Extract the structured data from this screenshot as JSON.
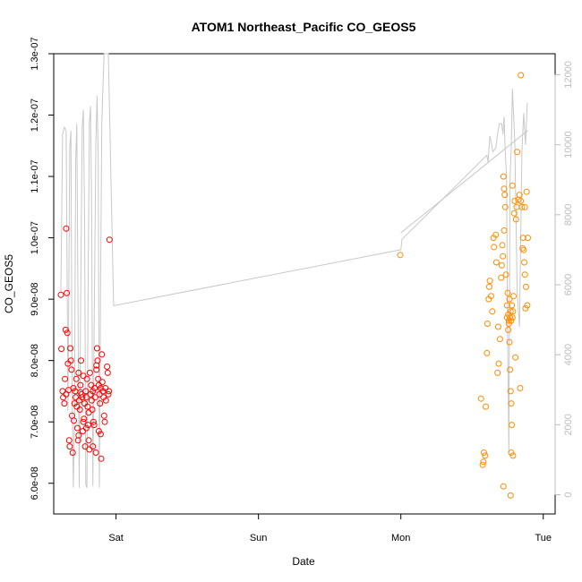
{
  "chart_data": {
    "type": "scatter",
    "title": "ATOM1 Northeast_Pacific CO_GEOS5",
    "xlabel": "Date",
    "ylabel": "CO_GEOS5",
    "x_ticks": [
      "Sat",
      "Sun",
      "Mon",
      "Tue"
    ],
    "x_tick_positions_hours": [
      0,
      24,
      48,
      72
    ],
    "xlim_hours": [
      -10.5,
      74
    ],
    "ylim": [
      5.5e-08,
      1.3e-07
    ],
    "y_ticks": [
      "6.0e-08",
      "7.0e-08",
      "8.0e-08",
      "9.0e-08",
      "1.0e-07",
      "1.1e-07",
      "1.2e-07",
      "1.3e-07"
    ],
    "y_tick_values": [
      6e-08,
      7e-08,
      8e-08,
      9e-08,
      1e-07,
      1.1e-07,
      1.2e-07,
      1.3e-07
    ],
    "y2_ticks": [
      "0",
      "2000",
      "4000",
      "6000",
      "8000",
      "10000",
      "12000"
    ],
    "y2_tick_values": [
      0,
      2000,
      4000,
      6000,
      8000,
      10000,
      12000
    ],
    "y2lim": [
      -550,
      12600
    ],
    "series": [
      {
        "color": "#ff0000",
        "points": [
          [
            -9.3,
            9.07e-08
          ],
          [
            -9.2,
            8.19e-08
          ],
          [
            -9.0,
            7.5e-08
          ],
          [
            -8.9,
            7.4e-08
          ],
          [
            -8.7,
            7.3e-08
          ],
          [
            -8.6,
            7.7e-08
          ],
          [
            -8.4,
            7.45e-08
          ],
          [
            -8.3,
            9.1e-08
          ],
          [
            -8.5,
            8.5e-08
          ],
          [
            -8.4,
            1.015e-07
          ],
          [
            -8.2,
            8.45e-08
          ],
          [
            -8.1,
            7.95e-08
          ],
          [
            -8.0,
            7.52e-08
          ],
          [
            -7.9,
            6.7e-08
          ],
          [
            -7.8,
            6.6e-08
          ],
          [
            -7.7,
            8.2e-08
          ],
          [
            -7.6,
            8e-08
          ],
          [
            -7.5,
            7.85e-08
          ],
          [
            -7.4,
            7.1e-08
          ],
          [
            -7.3,
            6.5e-08
          ],
          [
            -7.2,
            7.55e-08
          ],
          [
            -7.0,
            7.3e-08
          ],
          [
            -6.9,
            7.5e-08
          ],
          [
            -6.8,
            7.4e-08
          ],
          [
            -6.7,
            7.7e-08
          ],
          [
            -6.6,
            7.25e-08
          ],
          [
            -6.5,
            6.9e-08
          ],
          [
            -6.4,
            6.7e-08
          ],
          [
            -6.3,
            7.8e-08
          ],
          [
            -6.2,
            7.35e-08
          ],
          [
            -6.1,
            7.2e-08
          ],
          [
            -6.0,
            7.6e-08
          ],
          [
            -5.9,
            8e-08
          ],
          [
            -5.8,
            7.45e-08
          ],
          [
            -5.7,
            7.4e-08
          ],
          [
            -5.6,
            6.85e-08
          ],
          [
            -5.5,
            7e-08
          ],
          [
            -5.4,
            7.05e-08
          ],
          [
            -5.3,
            7.3e-08
          ],
          [
            -5.2,
            6.6e-08
          ],
          [
            -5.1,
            7.5e-08
          ],
          [
            -5.0,
            7.4e-08
          ],
          [
            -4.9,
            7.7e-08
          ],
          [
            -4.8,
            7.25e-08
          ],
          [
            -4.7,
            6.95e-08
          ],
          [
            -4.6,
            6.7e-08
          ],
          [
            -4.5,
            6.55e-08
          ],
          [
            -4.4,
            7.8e-08
          ],
          [
            -4.3,
            7.45e-08
          ],
          [
            -4.2,
            7.6e-08
          ],
          [
            -4.1,
            7.35e-08
          ],
          [
            -4.0,
            7.2e-08
          ],
          [
            -3.9,
            7.5e-08
          ],
          [
            -3.8,
            7e-08
          ],
          [
            -3.7,
            6.95e-08
          ],
          [
            -3.6,
            7.55e-08
          ],
          [
            -3.5,
            7.4e-08
          ],
          [
            -3.4,
            6.5e-08
          ],
          [
            -3.3,
            7.85e-08
          ],
          [
            -3.2,
            8.2e-08
          ],
          [
            -3.1,
            8e-08
          ],
          [
            -3.0,
            7.7e-08
          ],
          [
            -2.9,
            7.6e-08
          ],
          [
            -2.8,
            7.45e-08
          ],
          [
            -2.7,
            7.3e-08
          ],
          [
            -2.6,
            6.8e-08
          ],
          [
            -2.5,
            6.4e-08
          ],
          [
            -2.4,
            8.1e-08
          ],
          [
            -2.3,
            7.65e-08
          ],
          [
            -2.2,
            7.5e-08
          ],
          [
            -2.1,
            7.4e-08
          ],
          [
            -2.0,
            7.1e-08
          ],
          [
            -1.9,
            7e-08
          ],
          [
            -1.8,
            7.55e-08
          ],
          [
            -1.7,
            7.35e-08
          ],
          [
            -1.5,
            7.9e-08
          ],
          [
            -1.4,
            7.8e-08
          ],
          [
            -1.3,
            7.45e-08
          ],
          [
            -1.2,
            7.5e-08
          ],
          [
            -1.1,
            9.97e-08
          ],
          [
            -6.3,
            6.78e-08
          ],
          [
            -5.0,
            6.9e-08
          ],
          [
            -3.9,
            6.6e-08
          ],
          [
            -2.9,
            6.85e-08
          ],
          [
            -4.6,
            7.15e-08
          ],
          [
            -7.1,
            7.02e-08
          ],
          [
            -6.0,
            7.48e-08
          ],
          [
            -5.5,
            7.75e-08
          ],
          [
            -3.3,
            7.92e-08
          ],
          [
            -2.6,
            7.55e-08
          ]
        ]
      },
      {
        "color": "#ff8c00",
        "points": [
          [
            47.9,
            9.72e-08
          ],
          [
            61.5,
            7.38e-08
          ],
          [
            61.8,
            6.3e-08
          ],
          [
            61.9,
            6.35e-08
          ],
          [
            62.0,
            6.5e-08
          ],
          [
            62.2,
            6.45e-08
          ],
          [
            62.3,
            7.25e-08
          ],
          [
            62.5,
            8.12e-08
          ],
          [
            62.6,
            8.6e-08
          ],
          [
            62.8,
            9e-08
          ],
          [
            62.9,
            9.2e-08
          ],
          [
            63.0,
            9.3e-08
          ],
          [
            63.2,
            9.05e-08
          ],
          [
            63.4,
            8.8e-08
          ],
          [
            63.6,
            1e-07
          ],
          [
            63.7,
            9.85e-08
          ],
          [
            64.0,
            1.005e-07
          ],
          [
            64.1,
            9.6e-08
          ],
          [
            64.3,
            7.8e-08
          ],
          [
            64.4,
            8.55e-08
          ],
          [
            64.5,
            7.95e-08
          ],
          [
            64.7,
            8.35e-08
          ],
          [
            64.9,
            9.35e-08
          ],
          [
            65.0,
            9.55e-08
          ],
          [
            65.2,
            9.7e-08
          ],
          [
            65.4,
            1.012e-07
          ],
          [
            65.1,
            9.88e-08
          ],
          [
            65.3,
            1.1e-07
          ],
          [
            65.4,
            1.08e-07
          ],
          [
            65.5,
            1.07e-07
          ],
          [
            65.6,
            1.05e-07
          ],
          [
            65.7,
            9.4e-08
          ],
          [
            65.9,
            8.9e-08
          ],
          [
            66.0,
            9.1e-08
          ],
          [
            66.1,
            8.75e-08
          ],
          [
            66.2,
            8.6e-08
          ],
          [
            66.3,
            9e-08
          ],
          [
            66.4,
            8.7e-08
          ],
          [
            66.5,
            8.8e-08
          ],
          [
            66.6,
            8.65e-08
          ],
          [
            66.7,
            8.9e-08
          ],
          [
            66.8,
            8.7e-08
          ],
          [
            66.9,
            8.8e-08
          ],
          [
            67.0,
            9.05e-08
          ],
          [
            67.1,
            1.04e-07
          ],
          [
            67.2,
            1.06e-07
          ],
          [
            67.4,
            1.03e-07
          ],
          [
            67.5,
            1.05e-07
          ],
          [
            67.6,
            1.14e-07
          ],
          [
            67.8,
            1.062e-07
          ],
          [
            68.0,
            1.07e-07
          ],
          [
            68.2,
            1.06e-07
          ],
          [
            68.4,
            1.05e-07
          ],
          [
            68.6,
            1e-07
          ],
          [
            68.7,
            9.8e-08
          ],
          [
            68.8,
            9.6e-08
          ],
          [
            68.9,
            9.4e-08
          ],
          [
            69.1,
            9.2e-08
          ],
          [
            69.3,
            8.9e-08
          ],
          [
            69.4,
            1e-07
          ],
          [
            65.9,
            8.7e-08
          ],
          [
            66.1,
            8.5e-08
          ],
          [
            66.2,
            8.65e-08
          ],
          [
            66.3,
            8.3e-08
          ],
          [
            66.4,
            7.85e-08
          ],
          [
            66.5,
            7.5e-08
          ],
          [
            66.6,
            7.3e-08
          ],
          [
            66.7,
            6.95e-08
          ],
          [
            66.9,
            6.45e-08
          ],
          [
            66.6,
            6.5e-08
          ],
          [
            65.3,
            5.95e-08
          ],
          [
            66.5,
            5.8e-08
          ],
          [
            68.1,
            7.55e-08
          ],
          [
            68.2,
            1.265e-07
          ],
          [
            68.5,
            9.83e-08
          ],
          [
            69.0,
            8.85e-08
          ],
          [
            67.3,
            8.05e-08
          ],
          [
            68.9,
            1.05e-07
          ],
          [
            69.2,
            1.075e-07
          ],
          [
            66.8,
            1.085e-07
          ]
        ]
      }
    ],
    "line_right_axis": {
      "color": "#c8c8c8",
      "points": [
        [
          -9.3,
          5800
        ],
        [
          -9.0,
          10300
        ],
        [
          -8.7,
          10500
        ],
        [
          -8.4,
          10400
        ],
        [
          -8.1,
          2400
        ],
        [
          -7.8,
          9900
        ],
        [
          -7.6,
          10400
        ],
        [
          -7.4,
          3100
        ],
        [
          -7.2,
          200
        ],
        [
          -7.0,
          2300
        ],
        [
          -6.8,
          9500
        ],
        [
          -6.6,
          10600
        ],
        [
          -6.4,
          5100
        ],
        [
          -6.2,
          200
        ],
        [
          -6.0,
          4700
        ],
        [
          -5.7,
          10500
        ],
        [
          -5.5,
          11000
        ],
        [
          -5.3,
          7800
        ],
        [
          -5.1,
          300
        ],
        [
          -4.9,
          200
        ],
        [
          -4.7,
          5900
        ],
        [
          -4.5,
          10600
        ],
        [
          -4.3,
          11100
        ],
        [
          -4.1,
          8000
        ],
        [
          -3.9,
          250
        ],
        [
          -3.7,
          4600
        ],
        [
          -3.4,
          10100
        ],
        [
          -3.2,
          11400
        ],
        [
          -3.0,
          9600
        ],
        [
          -2.8,
          200
        ],
        [
          -2.6,
          6200
        ],
        [
          -2.4,
          10600
        ],
        [
          -2.2,
          11700
        ],
        [
          -2.0,
          12600
        ],
        [
          -1.3,
          12600
        ],
        [
          -0.4,
          5400
        ],
        [
          48.0,
          7000
        ],
        [
          48.2,
          7300
        ],
        [
          62.5,
          9700
        ],
        [
          62.7,
          9500
        ],
        [
          63.0,
          10250
        ],
        [
          63.2,
          10100
        ],
        [
          63.5,
          9800
        ],
        [
          64.0,
          9900
        ],
        [
          64.3,
          10300
        ],
        [
          64.6,
          10600
        ],
        [
          65.0,
          10600
        ],
        [
          65.2,
          10300
        ],
        [
          65.4,
          10800
        ],
        [
          65.6,
          9800
        ],
        [
          65.8,
          9100
        ],
        [
          66.0,
          4400
        ],
        [
          66.2,
          1200
        ],
        [
          66.4,
          9000
        ],
        [
          66.6,
          9900
        ],
        [
          66.8,
          11600
        ],
        [
          67.2,
          10100
        ],
        [
          67.6,
          5800
        ],
        [
          68.0,
          4800
        ],
        [
          68.4,
          9800
        ],
        [
          68.7,
          10900
        ],
        [
          69.0,
          10000
        ],
        [
          69.3,
          11200
        ]
      ]
    },
    "line_left_axis": {
      "color": "#c8c8c8",
      "points": [
        [
          48.0,
          1.008e-07
        ],
        [
          69.4,
          1.175e-07
        ]
      ]
    },
    "grid": false,
    "legend": "none"
  }
}
